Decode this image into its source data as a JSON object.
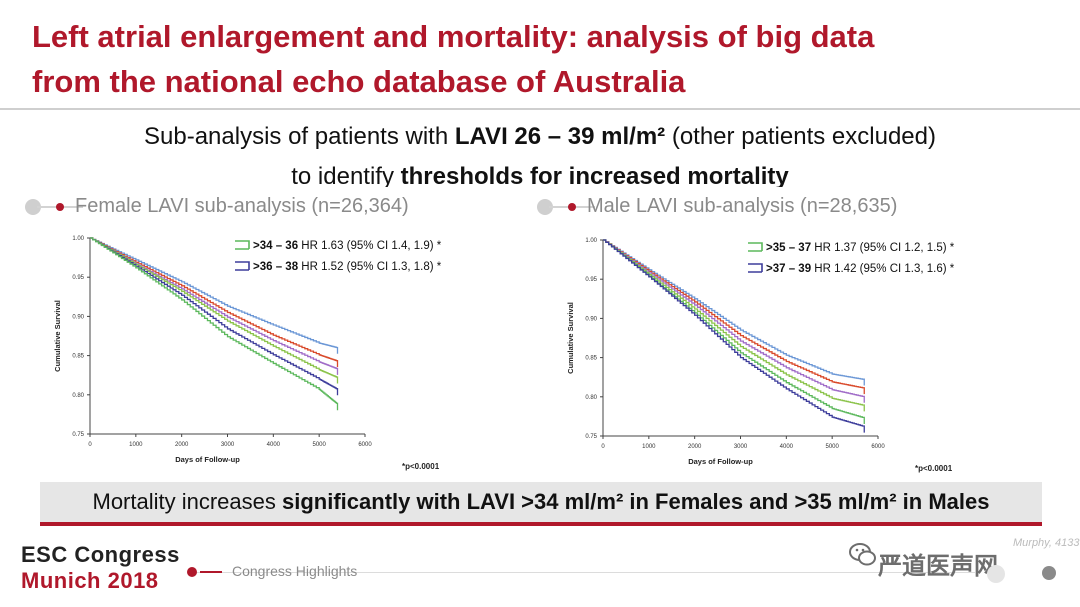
{
  "title": {
    "line1": "Left atrial enlargement and mortality: analysis of big data",
    "line2": "from the national echo database of Australia"
  },
  "subtitle": {
    "part1": "Sub-analysis of patients with ",
    "bold1": "LAVI 26 – 39 ml/m²",
    "part2": " (other patients excluded)",
    "part3": "to identify ",
    "bold2": "thresholds for increased mortality"
  },
  "panels": {
    "female": {
      "heading": "Female LAVI sub-analysis (n=26,364)"
    },
    "male": {
      "heading": "Male LAVI sub-analysis (n=28,635)"
    }
  },
  "chart_data": [
    {
      "type": "line",
      "xlabel": "Days of Follow-up",
      "ylabel": "Cumulative Survival",
      "xlim": [
        0,
        6000
      ],
      "ylim": [
        0.75,
        1.0
      ],
      "x_ticks": [
        "0",
        "1000",
        "2000",
        "3000",
        "4000",
        "5000",
        "6000"
      ],
      "y_ticks": [
        "1.00",
        "0.95",
        "0.90",
        "0.85",
        "0.80",
        "0.75"
      ],
      "footnote": "*p<0.0001",
      "legend": [
        {
          "bold": ">34 – 36",
          "text": " HR 1.63 (95% CI 1.4, 1.9) *",
          "color": "#5cb85c"
        },
        {
          "bold": ">36 – 38",
          "text": " HR 1.52 (95% CI 1.3, 1.8) *",
          "color": "#3d3d9b"
        }
      ],
      "series": [
        {
          "color": "#6b97d6",
          "x": [
            0,
            1000,
            2000,
            3000,
            4000,
            5000,
            5400
          ],
          "y": [
            1.0,
            0.972,
            0.944,
            0.913,
            0.889,
            0.866,
            0.86
          ]
        },
        {
          "color": "#d94a2b",
          "x": [
            0,
            1000,
            2000,
            3000,
            4000,
            5000,
            5400
          ],
          "y": [
            1.0,
            0.969,
            0.939,
            0.905,
            0.876,
            0.851,
            0.843
          ]
        },
        {
          "color": "#a06cc8",
          "x": [
            0,
            1000,
            2000,
            3000,
            4000,
            5000,
            5400
          ],
          "y": [
            1.0,
            0.967,
            0.935,
            0.899,
            0.869,
            0.842,
            0.833
          ]
        },
        {
          "color": "#8bc34a",
          "x": [
            0,
            1000,
            2000,
            3000,
            4000,
            5000,
            5400
          ],
          "y": [
            1.0,
            0.966,
            0.932,
            0.894,
            0.862,
            0.832,
            0.822
          ]
        },
        {
          "color": "#3d3d9b",
          "x": [
            0,
            1000,
            2000,
            3000,
            4000,
            5000,
            5400
          ],
          "y": [
            1.0,
            0.964,
            0.927,
            0.884,
            0.851,
            0.82,
            0.807
          ]
        },
        {
          "color": "#5cb85c",
          "x": [
            0,
            1000,
            2000,
            3000,
            4000,
            5000,
            5400
          ],
          "y": [
            1.0,
            0.962,
            0.921,
            0.874,
            0.84,
            0.807,
            0.788
          ]
        }
      ]
    },
    {
      "type": "line",
      "xlabel": "Days of Follow-up",
      "ylabel": "Cumulative Survival",
      "xlim": [
        0,
        6000
      ],
      "ylim": [
        0.75,
        1.0
      ],
      "x_ticks": [
        "0",
        "1000",
        "2000",
        "3000",
        "4000",
        "5000",
        "6000"
      ],
      "y_ticks": [
        "1.00",
        "0.95",
        "0.90",
        "0.85",
        "0.80",
        "0.75"
      ],
      "footnote": "*p<0.0001",
      "legend": [
        {
          "bold": ">35 – 37",
          "text": " HR 1.37 (95% CI 1.2, 1.5) *",
          "color": "#5cb85c"
        },
        {
          "bold": ">37 – 39",
          "text": " HR 1.42 (95% CI 1.3, 1.6) *",
          "color": "#3d3d9b"
        }
      ],
      "series": [
        {
          "color": "#6b97d6",
          "x": [
            0,
            1000,
            2000,
            3000,
            4000,
            5000,
            5700
          ],
          "y": [
            1.0,
            0.962,
            0.925,
            0.885,
            0.853,
            0.829,
            0.822
          ]
        },
        {
          "color": "#d94a2b",
          "x": [
            0,
            1000,
            2000,
            3000,
            4000,
            5000,
            5700
          ],
          "y": [
            1.0,
            0.96,
            0.921,
            0.878,
            0.845,
            0.819,
            0.811
          ]
        },
        {
          "color": "#a06cc8",
          "x": [
            0,
            1000,
            2000,
            3000,
            4000,
            5000,
            5700
          ],
          "y": [
            1.0,
            0.958,
            0.917,
            0.871,
            0.837,
            0.809,
            0.8
          ]
        },
        {
          "color": "#8bc34a",
          "x": [
            0,
            1000,
            2000,
            3000,
            4000,
            5000,
            5700
          ],
          "y": [
            1.0,
            0.956,
            0.912,
            0.864,
            0.828,
            0.798,
            0.789
          ]
        },
        {
          "color": "#5cb85c",
          "x": [
            0,
            1000,
            2000,
            3000,
            4000,
            5000,
            5700
          ],
          "y": [
            1.0,
            0.954,
            0.907,
            0.856,
            0.818,
            0.785,
            0.773
          ]
        },
        {
          "color": "#3d3d9b",
          "x": [
            0,
            1000,
            2000,
            3000,
            4000,
            5000,
            5700
          ],
          "y": [
            1.0,
            0.953,
            0.904,
            0.85,
            0.81,
            0.774,
            0.762
          ]
        }
      ]
    }
  ],
  "banner": {
    "part1": "Mortality increases ",
    "bold1": "significantly with LAVI >34 ml/m² in Females and >35 ml/m² in Males"
  },
  "footer": {
    "congress_line1": "ESC Congress",
    "congress_line2": "Munich 2018",
    "highlights": "Congress Highlights",
    "citation": "Murphy, 4133",
    "watermark": "严道医声网"
  },
  "colors": {
    "brand_red": "#b0182b"
  }
}
